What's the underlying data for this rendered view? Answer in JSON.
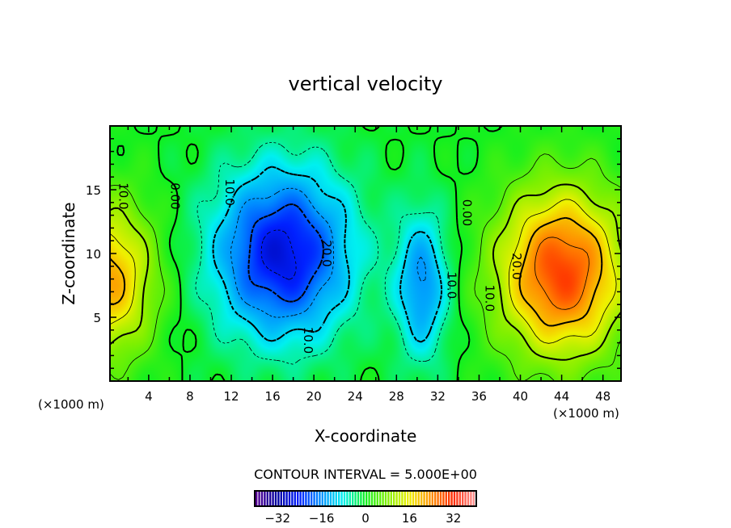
{
  "chart_data": {
    "type": "heatmap",
    "subtype": "filled-contour",
    "title": "vertical velocity",
    "xlabel": "X-coordinate",
    "ylabel": "Z-coordinate",
    "x_unit_left": "(×1000 m)",
    "x_unit_right": "(×1000 m)",
    "xlim": [
      0.25,
      49.75
    ],
    "ylim": [
      0,
      20
    ],
    "x_ticks": [
      "4",
      "8",
      "12",
      "16",
      "20",
      "24",
      "28",
      "32",
      "36",
      "40",
      "44",
      "48"
    ],
    "x_tick_values": [
      4,
      8,
      12,
      16,
      20,
      24,
      28,
      32,
      36,
      40,
      44,
      48
    ],
    "y_ticks": [
      "5",
      "10",
      "15"
    ],
    "y_tick_values": [
      5,
      10,
      15
    ],
    "contour_interval_text": "CONTOUR INTERVAL = 5.000E+00",
    "contour_interval": 5,
    "contour_levels": [
      -25,
      -20,
      -15,
      -10,
      -5,
      0,
      5,
      10,
      15,
      20,
      25
    ],
    "contour_labels": [
      {
        "text": "10.0",
        "x": 1.5,
        "z": 14.5
      },
      {
        "text": "0.00",
        "x": 6.5,
        "z": 14.5
      },
      {
        "text": "10.0",
        "x": 11.8,
        "z": 14.8
      },
      {
        "text": "20.0",
        "x": 21.2,
        "z": 10
      },
      {
        "text": "10.0",
        "x": 19.4,
        "z": 3.2
      },
      {
        "text": "10.0",
        "x": 33.3,
        "z": 7.5
      },
      {
        "text": "0.00",
        "x": 34.8,
        "z": 13.2
      },
      {
        "text": "10.0",
        "x": 37.0,
        "z": 6.5
      },
      {
        "text": "20.0",
        "x": 39.6,
        "z": 9
      }
    ],
    "field_model": [
      {
        "name": "left updraft",
        "x": 0,
        "z": 8,
        "amp": 22,
        "sx": 3.2,
        "sz": 4.2
      },
      {
        "name": "central downdraft",
        "x": 17,
        "z": 10,
        "amp": -27,
        "sx": 4.6,
        "sz": 4.6
      },
      {
        "name": "narrow downdraft",
        "x": 30.5,
        "z": 7.5,
        "amp": -16,
        "sx": 1.8,
        "sz": 4
      },
      {
        "name": "right updraft",
        "x": 44,
        "z": 8.5,
        "amp": 30,
        "sx": 4.3,
        "sz": 4.6
      }
    ],
    "colorbar": {
      "range": [
        -40,
        40
      ],
      "tick_labels": [
        "−32",
        "−16",
        "0",
        "16",
        "32"
      ],
      "tick_values": [
        -32,
        -16,
        0,
        16,
        32
      ],
      "stops": [
        [
          -40,
          "#5a0090"
        ],
        [
          -32,
          "#0000a0"
        ],
        [
          -24,
          "#0020ff"
        ],
        [
          -16,
          "#0090ff"
        ],
        [
          -8,
          "#00f0f0"
        ],
        [
          0,
          "#10f020"
        ],
        [
          8,
          "#80f000"
        ],
        [
          16,
          "#f0f000"
        ],
        [
          24,
          "#ff9000"
        ],
        [
          32,
          "#ff2800"
        ],
        [
          40,
          "#ff9898"
        ]
      ]
    }
  }
}
